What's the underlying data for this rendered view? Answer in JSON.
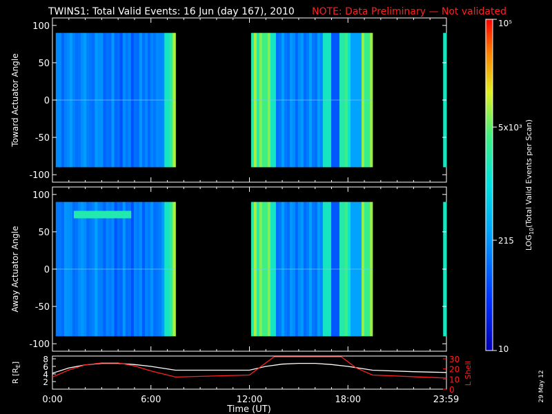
{
  "title": {
    "main": "TWINS1: Total Valid Events: 16 Jun (day 167), 2010",
    "note": "NOTE: Data Preliminary — Not validated",
    "note_color": "#ff2020"
  },
  "date_stamp": "29 May 12",
  "chart_data": [
    {
      "type": "heatmap",
      "ylabel": "Toward Actuator Angle",
      "ylim": [
        -110,
        110
      ],
      "yticks": [
        "100",
        "50",
        "0",
        "-50",
        "-100"
      ],
      "ytick_values": [
        100,
        50,
        0,
        -50,
        -100
      ],
      "xlim_hours": [
        0,
        24
      ],
      "data_angle_range": [
        -90,
        90
      ],
      "segments": [
        {
          "start_hour": 0.2,
          "end_hour": 7.5
        },
        {
          "start_hour": 12.1,
          "end_hour": 19.5
        },
        {
          "start_hour": 23.8,
          "end_hour": 24.0
        }
      ]
    },
    {
      "type": "heatmap",
      "ylabel": "Away Actuator Angle",
      "ylim": [
        -110,
        110
      ],
      "yticks": [
        "100",
        "50",
        "0",
        "-50",
        "-100"
      ],
      "ytick_values": [
        100,
        50,
        0,
        -50,
        -100
      ],
      "xlim_hours": [
        0,
        24
      ],
      "data_angle_range": [
        -90,
        90
      ],
      "segments": [
        {
          "start_hour": 0.2,
          "end_hour": 7.5
        },
        {
          "start_hour": 12.1,
          "end_hour": 19.5
        },
        {
          "start_hour": 23.8,
          "end_hour": 24.0
        }
      ]
    },
    {
      "type": "line",
      "xlabel": "Time (UT)",
      "xticks": [
        "0:00",
        "6:00",
        "12:00",
        "18:00",
        "23:59"
      ],
      "xtick_hours": [
        0,
        6,
        12,
        18,
        23.98
      ],
      "xlim_hours": [
        0,
        24
      ],
      "left_axis": {
        "label": "R [R_E]",
        "label_main": "R [R",
        "label_sub": "E",
        "label_end": "]",
        "ticks": [
          "8",
          "6",
          "4",
          "2"
        ],
        "tick_values": [
          8,
          6,
          4,
          2
        ],
        "ylim": [
          0,
          8
        ]
      },
      "right_axis": {
        "label": "L Shell",
        "ticks": [
          "30",
          "20",
          "10",
          "0"
        ],
        "tick_values": [
          30,
          20,
          10,
          0
        ],
        "ylim": [
          0,
          30
        ],
        "color": "#ff2020"
      },
      "series": [
        {
          "name": "R [R_E]",
          "color": "#ffffff",
          "x": [
            0,
            1,
            2,
            3,
            4,
            5,
            6,
            7.5,
            12,
            13,
            14,
            15,
            16,
            17,
            18,
            19.5,
            22,
            24
          ],
          "y": [
            4.2,
            5.6,
            6.4,
            6.8,
            6.8,
            6.5,
            6.0,
            5.0,
            5.0,
            6.0,
            6.6,
            6.8,
            6.8,
            6.5,
            6.0,
            5.0,
            4.6,
            4.4
          ]
        },
        {
          "name": "L Shell",
          "color": "#ff2020",
          "axis": "right",
          "x": [
            0,
            1,
            2,
            3,
            4,
            5,
            6,
            7.5,
            12,
            13,
            13.5,
            17.6,
            18.5,
            19.5,
            24
          ],
          "y": [
            12,
            19,
            24,
            26,
            26,
            23,
            18,
            12,
            14,
            26,
            32,
            32,
            21,
            14,
            11
          ]
        }
      ]
    }
  ],
  "colorbar": {
    "label_prefix": "LOG",
    "label_sub": "10",
    "label_suffix": "(Total Valid  Events per Scan)",
    "ticks": [
      {
        "label": "10",
        "value": 10
      },
      {
        "label": "215",
        "value": 215
      },
      {
        "label": "5x10³",
        "value": 5000
      },
      {
        "label": "10⁵",
        "value": 100000
      }
    ],
    "range": [
      10,
      100000
    ]
  }
}
